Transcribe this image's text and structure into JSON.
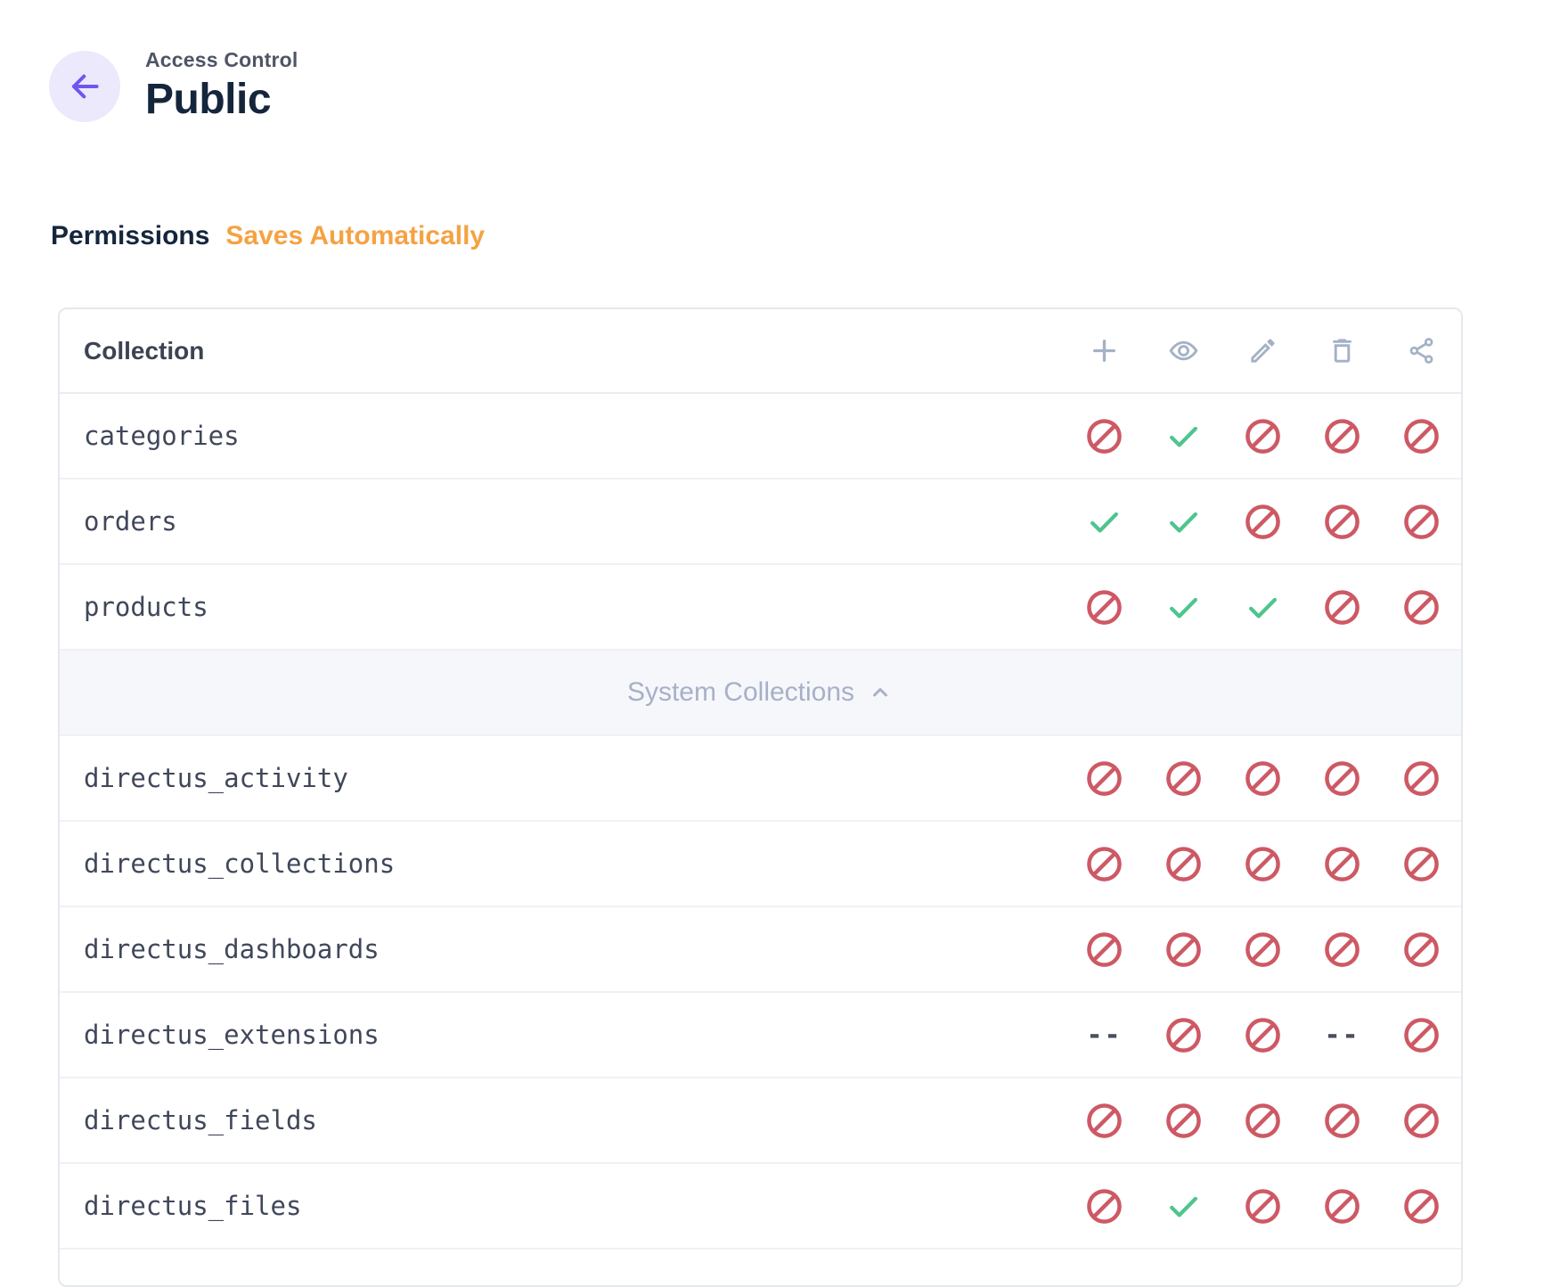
{
  "page": {
    "breadcrumb": "Access Control",
    "title": "Public"
  },
  "section": {
    "heading": "Permissions",
    "autosave_note": "Saves Automatically"
  },
  "table": {
    "collection_header": "Collection",
    "columns": [
      {
        "action": "create",
        "icon": "plus-icon"
      },
      {
        "action": "read",
        "icon": "eye-icon"
      },
      {
        "action": "update",
        "icon": "pencil-icon"
      },
      {
        "action": "delete",
        "icon": "trash-icon"
      },
      {
        "action": "share",
        "icon": "share-icon"
      }
    ],
    "dash_label": "--",
    "user_collections": [
      {
        "name": "categories",
        "permissions": [
          "block",
          "check",
          "block",
          "block",
          "block"
        ]
      },
      {
        "name": "orders",
        "permissions": [
          "check",
          "check",
          "block",
          "block",
          "block"
        ]
      },
      {
        "name": "products",
        "permissions": [
          "block",
          "check",
          "check",
          "block",
          "block"
        ]
      }
    ],
    "system_divider": {
      "label": "System Collections",
      "icon": "chevron-up-icon"
    },
    "system_collections": [
      {
        "name": "directus_activity",
        "permissions": [
          "block",
          "block",
          "block",
          "block",
          "block"
        ]
      },
      {
        "name": "directus_collections",
        "permissions": [
          "block",
          "block",
          "block",
          "block",
          "block"
        ]
      },
      {
        "name": "directus_dashboards",
        "permissions": [
          "block",
          "block",
          "block",
          "block",
          "block"
        ]
      },
      {
        "name": "directus_extensions",
        "permissions": [
          "dash",
          "block",
          "block",
          "dash",
          "block"
        ]
      },
      {
        "name": "directus_fields",
        "permissions": [
          "block",
          "block",
          "block",
          "block",
          "block"
        ]
      },
      {
        "name": "directus_files",
        "permissions": [
          "block",
          "check",
          "block",
          "block",
          "block"
        ]
      }
    ]
  },
  "colors": {
    "accent": "#6e56f0",
    "accent_bg": "#ece9fc",
    "warning": "#f5a243",
    "danger": "#cd5964",
    "success": "#4ec58e",
    "icon_muted": "#a4b1c6",
    "divider_text": "#a7b0c9"
  }
}
